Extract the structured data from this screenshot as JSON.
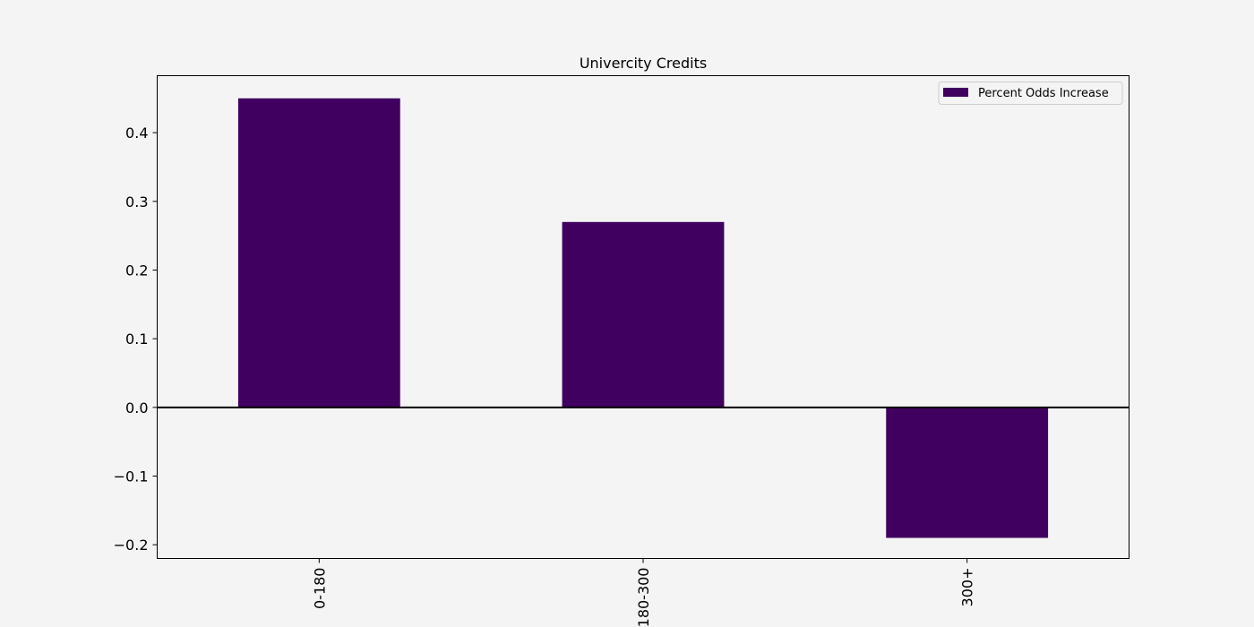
{
  "chart_data": {
    "type": "bar",
    "title": "Univercity Credits",
    "xlabel": "",
    "ylabel": "",
    "categories": [
      "0-180",
      "180-300",
      "300+"
    ],
    "series": [
      {
        "name": "Percent Odds Increase",
        "values": [
          0.45,
          0.27,
          -0.19
        ],
        "color": "#40005f"
      }
    ],
    "ylim": [
      -0.22,
      0.483
    ],
    "yticks": [
      -0.2,
      -0.1,
      0.0,
      0.1,
      0.2,
      0.3,
      0.4
    ],
    "ytick_labels": [
      "−0.2",
      "−0.1",
      "0.0",
      "0.1",
      "0.2",
      "0.3",
      "0.4"
    ],
    "zero_line": true,
    "grid": false,
    "legend_position": "top-right",
    "xtick_rotation": "vertical"
  }
}
